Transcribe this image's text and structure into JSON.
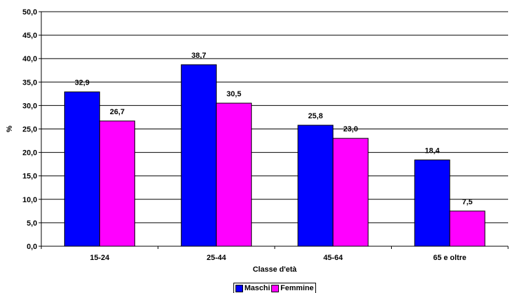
{
  "chart_data": {
    "type": "bar",
    "categories": [
      "15-24",
      "25-44",
      "45-64",
      "65 e oltre"
    ],
    "series": [
      {
        "name": "Maschi",
        "values": [
          32.9,
          38.7,
          25.8,
          18.4
        ],
        "labels": [
          "32,9",
          "38,7",
          "25,8",
          "18,4"
        ],
        "color": "#0000FF"
      },
      {
        "name": "Femmine",
        "values": [
          26.7,
          30.5,
          23.0,
          7.5
        ],
        "labels": [
          "26,7",
          "30,5",
          "23,0",
          "7,5"
        ],
        "color": "#FF00FF"
      }
    ],
    "xlabel": "Classe d'età",
    "ylabel": "%",
    "ylim": [
      0,
      50
    ],
    "ytick_values": [
      0,
      5,
      10,
      15,
      20,
      25,
      30,
      35,
      40,
      45,
      50
    ],
    "ytick_labels": [
      "0,0",
      "5,0",
      "10,0",
      "15,0",
      "20,0",
      "25,0",
      "30,0",
      "35,0",
      "40,0",
      "45,0",
      "50,0"
    ],
    "grid": true,
    "legend_position": "bottom"
  }
}
